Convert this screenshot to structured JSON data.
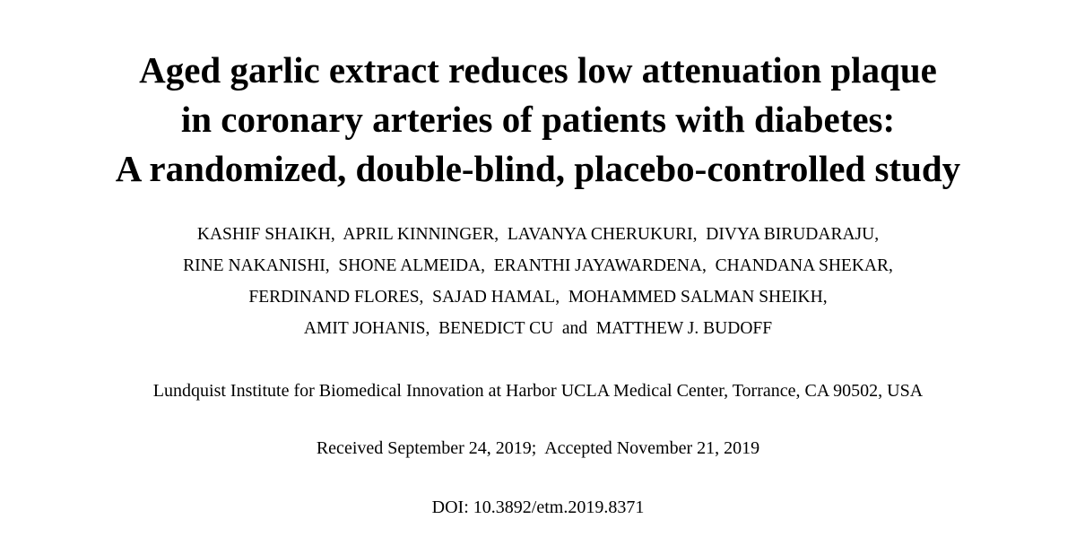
{
  "header": {
    "title": [
      "Aged garlic extract reduces low attenuation plaque",
      "in coronary arteries of patients with diabetes:",
      "A randomized, double-blind, placebo-controlled study"
    ],
    "authors": [
      "KASHIF SHAIKH,  APRIL KINNINGER,  LAVANYA CHERUKURI,  DIVYA BIRUDARAJU,",
      "RINE NAKANISHI,  SHONE ALMEIDA,  ERANTHI JAYAWARDENA,  CHANDANA SHEKAR,",
      "FERDINAND FLORES,  SAJAD HAMAL,  MOHAMMED SALMAN SHEIKH,",
      "AMIT JOHANIS,  BENEDICT CU  and  MATTHEW J. BUDOFF"
    ],
    "affiliation": "Lundquist Institute for Biomedical Innovation at Harbor UCLA Medical Center, Torrance, CA 90502, USA",
    "dates": "Received September 24, 2019;  Accepted November 21, 2019",
    "doi": "DOI: 10.3892/etm.2019.8371"
  }
}
